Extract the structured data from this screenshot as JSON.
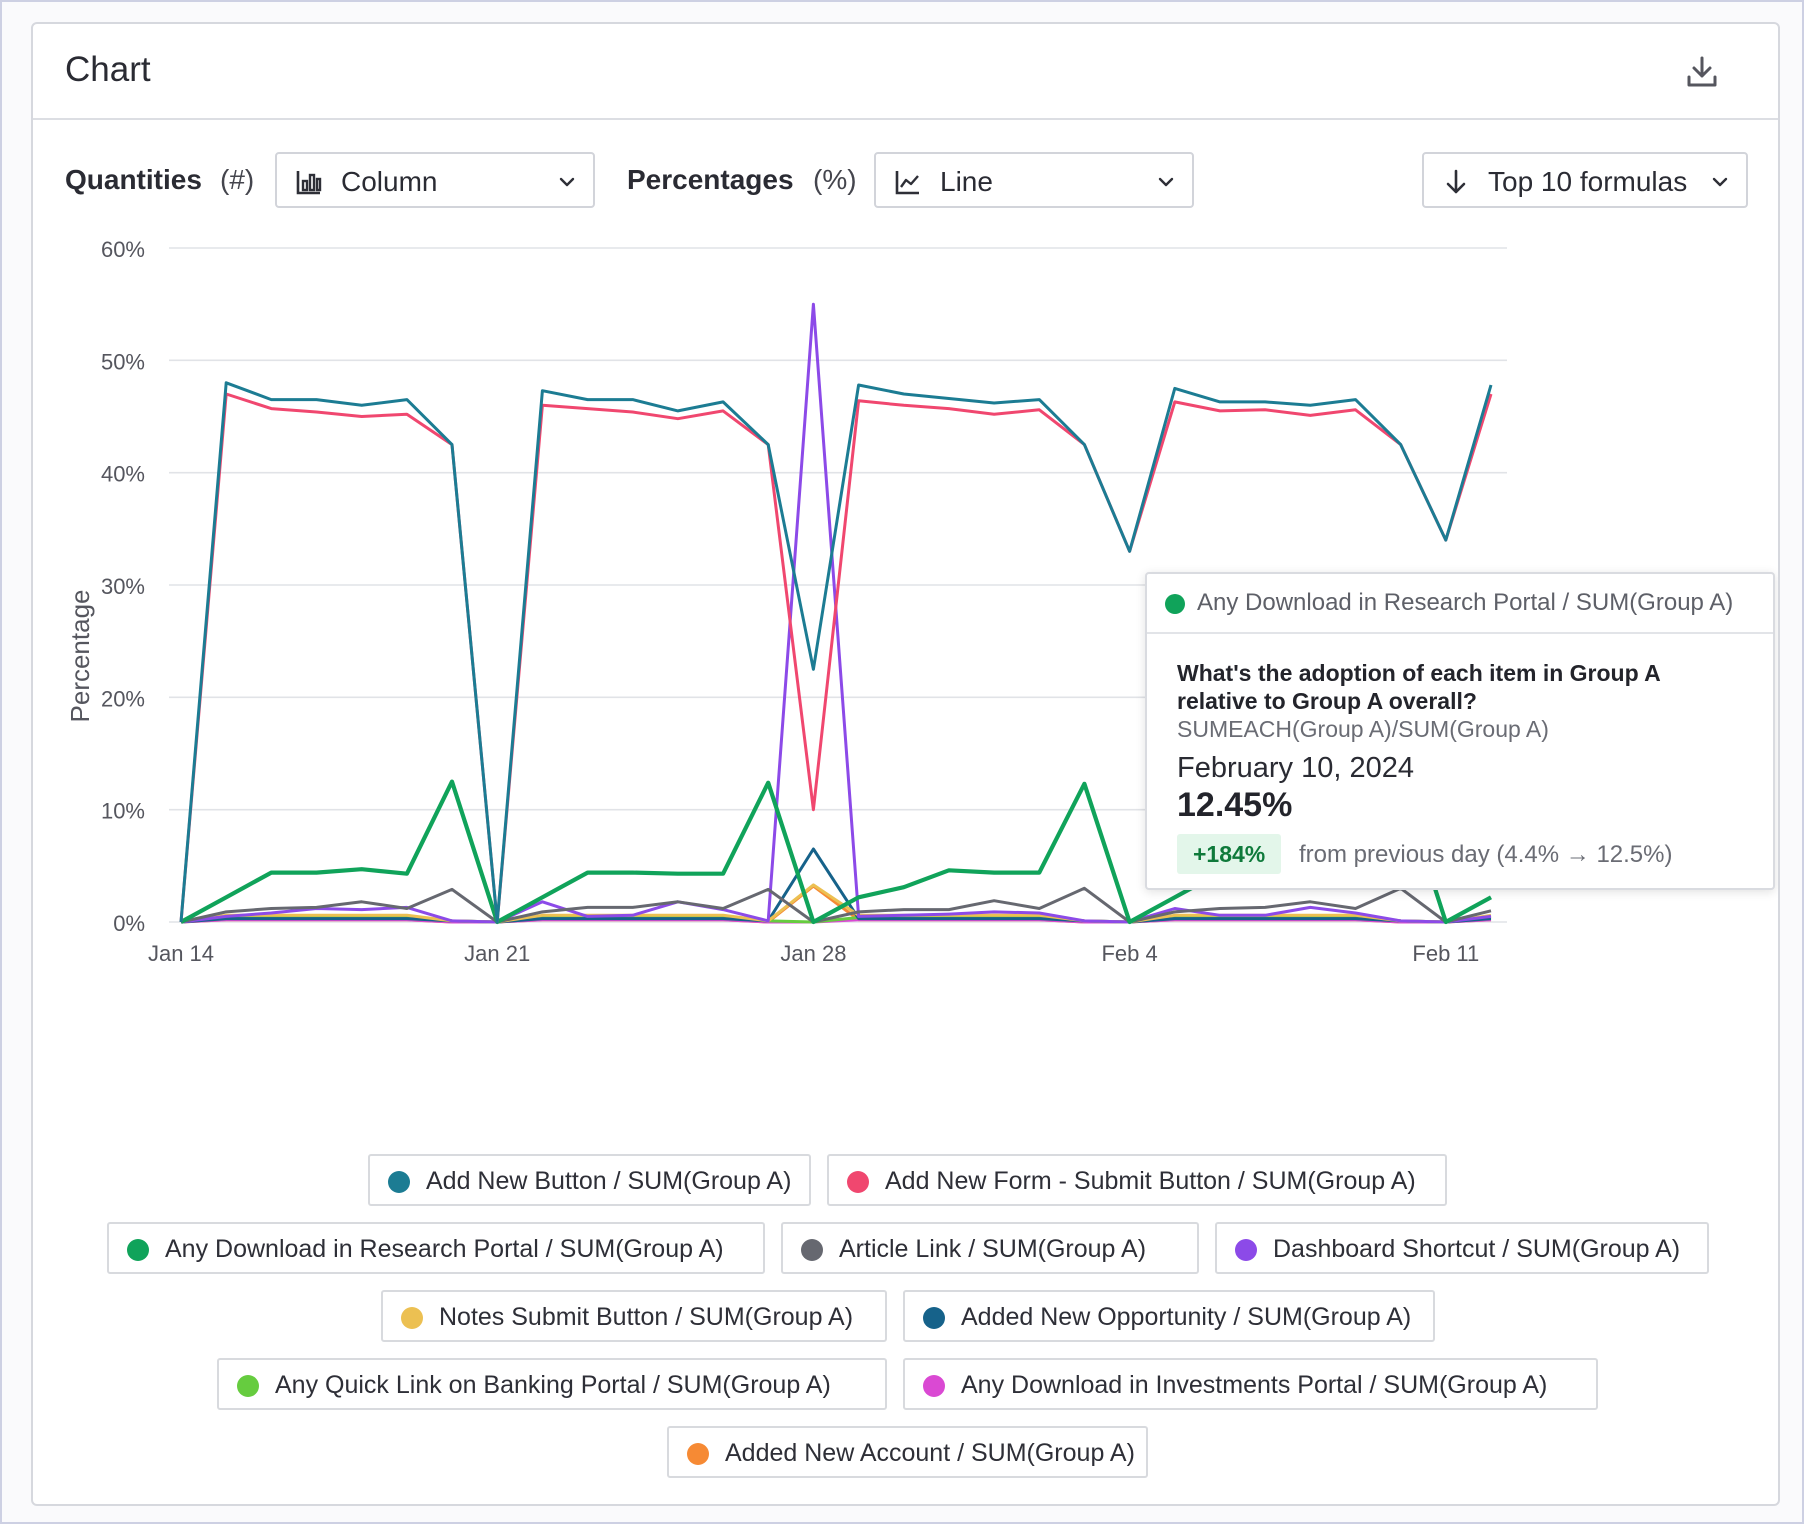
{
  "card": {
    "title": "Chart"
  },
  "controls": {
    "quantities_label": "Quantities",
    "quantities_unit": "(#)",
    "quantities_value": "Column",
    "percentages_label": "Percentages",
    "percentages_unit": "(%)",
    "percentages_value": "Line",
    "sort_value": "Top 10 formulas"
  },
  "chart_data": {
    "type": "line",
    "title": "",
    "xlabel": "",
    "ylabel": "Percentage",
    "ylim": [
      0,
      60
    ],
    "yticks": [
      0,
      10,
      20,
      30,
      40,
      50,
      60
    ],
    "ytick_labels": [
      "0%",
      "10%",
      "20%",
      "30%",
      "40%",
      "50%",
      "60%"
    ],
    "xtick_labels": [
      "Jan 14",
      "Jan 21",
      "Jan 28",
      "Feb 4",
      "Feb 11"
    ],
    "grid": true,
    "x": [
      "Jan 14",
      "Jan 15",
      "Jan 16",
      "Jan 17",
      "Jan 18",
      "Jan 19",
      "Jan 20",
      "Jan 21",
      "Jan 22",
      "Jan 23",
      "Jan 24",
      "Jan 25",
      "Jan 26",
      "Jan 27",
      "Jan 28",
      "Jan 29",
      "Jan 30",
      "Jan 31",
      "Feb 1",
      "Feb 2",
      "Feb 3",
      "Feb 4",
      "Feb 5",
      "Feb 6",
      "Feb 7",
      "Feb 8",
      "Feb 9",
      "Feb 10",
      "Feb 11",
      "Feb 12"
    ],
    "series": [
      {
        "name": "Add New Button / SUM(Group A)",
        "color": "#1c7c93",
        "values": [
          0,
          48,
          46.5,
          46.5,
          46,
          46.5,
          42.5,
          0,
          47.3,
          46.5,
          46.5,
          45.5,
          46.3,
          42.5,
          22.5,
          47.8,
          47,
          46.6,
          46.2,
          46.5,
          42.5,
          33,
          47.5,
          46.3,
          46.3,
          46,
          46.5,
          42.5,
          34,
          47.8
        ]
      },
      {
        "name": "Add New Form - Submit Button / SUM(Group A)",
        "color": "#f0476f",
        "values": [
          0,
          47,
          45.7,
          45.4,
          45,
          45.2,
          42.5,
          0,
          46,
          45.7,
          45.4,
          44.8,
          45.5,
          42.5,
          10,
          46.4,
          46,
          45.7,
          45.2,
          45.6,
          42.5,
          33,
          46.3,
          45.5,
          45.6,
          45.1,
          45.6,
          42.5,
          34,
          47
        ]
      },
      {
        "name": "Any Download in Research Portal / SUM(Group A)",
        "color": "#10a35a",
        "values": [
          0,
          2.2,
          4.4,
          4.4,
          4.7,
          4.3,
          12.5,
          0,
          2.2,
          4.4,
          4.4,
          4.3,
          4.3,
          12.4,
          0,
          2.2,
          3.1,
          4.6,
          4.4,
          4.4,
          12.3,
          0,
          2.2,
          4.4,
          4.6,
          4.4,
          4.4,
          12.45,
          0,
          2.2
        ]
      },
      {
        "name": "Article Link / SUM(Group A)",
        "color": "#666870",
        "values": [
          0,
          0.9,
          1.2,
          1.3,
          1.8,
          1.2,
          2.9,
          0,
          0.9,
          1.3,
          1.3,
          1.8,
          1.2,
          2.9,
          0,
          0.9,
          1.1,
          1.1,
          1.9,
          1.2,
          3,
          0,
          0.9,
          1.2,
          1.3,
          1.8,
          1.2,
          3,
          0,
          1
        ]
      },
      {
        "name": "Dashboard Shortcut / SUM(Group A)",
        "color": "#8c4ae8",
        "values": [
          0,
          0.5,
          0.8,
          1.2,
          1.1,
          1.3,
          0.1,
          0,
          1.8,
          0.5,
          0.6,
          1.8,
          1.1,
          0.1,
          55,
          0.5,
          0.6,
          0.7,
          0.9,
          0.8,
          0.1,
          0,
          1.2,
          0.6,
          0.6,
          1.3,
          0.8,
          0.1,
          0,
          0.5
        ]
      },
      {
        "name": "Notes Submit Button / SUM(Group A)",
        "color": "#ecc052",
        "values": [
          0,
          0.6,
          0.6,
          0.6,
          0.6,
          0.6,
          0.1,
          0,
          0.6,
          0.6,
          0.6,
          0.6,
          0.6,
          0.1,
          3.3,
          0.6,
          0.6,
          0.6,
          0.6,
          0.6,
          0.1,
          0,
          0.6,
          0.6,
          0.6,
          0.6,
          0.6,
          0.1,
          0,
          0.6
        ]
      },
      {
        "name": "Added New Opportunity / SUM(Group A)",
        "color": "#16628a",
        "values": [
          0,
          0.3,
          0.3,
          0.3,
          0.3,
          0.3,
          0.1,
          0,
          0.3,
          0.3,
          0.3,
          0.3,
          0.3,
          0.1,
          6.5,
          0.3,
          0.3,
          0.3,
          0.3,
          0.3,
          0.1,
          0,
          0.3,
          0.3,
          0.3,
          0.3,
          0.3,
          0.1,
          0,
          0.3
        ]
      },
      {
        "name": "Any Quick Link on Banking Portal / SUM(Group A)",
        "color": "#66cc3f",
        "values": [
          0,
          0.4,
          0.5,
          0.5,
          0.5,
          0.5,
          0.1,
          0,
          0.4,
          0.5,
          0.5,
          0.5,
          0.5,
          0.1,
          0,
          0.4,
          0.5,
          0.5,
          0.5,
          0.5,
          0.1,
          0,
          0.4,
          0.5,
          0.5,
          0.5,
          0.5,
          0.1,
          0,
          0.4
        ]
      },
      {
        "name": "Any Download in Investments Portal / SUM(Group A)",
        "color": "#da49d3",
        "values": [
          0,
          0.2,
          0.2,
          0.2,
          0.2,
          0.2,
          0,
          0,
          0.2,
          0.2,
          0.2,
          0.2,
          0.2,
          0,
          0,
          0.2,
          0.2,
          0.2,
          0.2,
          0.2,
          0,
          0,
          0.2,
          0.2,
          0.2,
          0.2,
          0.2,
          0,
          0,
          0.2
        ]
      },
      {
        "name": "Added New Account / SUM(Group A)",
        "color": "#f68a34",
        "values": [
          0,
          0.2,
          0.2,
          0.2,
          0.2,
          0.2,
          0,
          0,
          0.2,
          0.2,
          0.2,
          0.2,
          0.2,
          0,
          3.2,
          0.2,
          0.2,
          0.2,
          0.2,
          0.2,
          0,
          0,
          0.2,
          0.2,
          0.2,
          0.2,
          0.2,
          0,
          0,
          0.2
        ]
      }
    ],
    "legend_position": "bottom"
  },
  "tooltip": {
    "series": "Any Download in Research Portal / SUM(Group A)",
    "color": "#10a35a",
    "question": "What's the adoption of each item in Group A relative to Group A overall?",
    "formula": "SUMEACH(Group A)/SUM(Group A)",
    "date": "February 10, 2024",
    "value": "12.45%",
    "change": "+184%",
    "change_text": "from previous day (4.4% → 12.5%)"
  },
  "icons": {
    "download": "download-icon",
    "column": "bar-chart-icon",
    "line": "line-chart-icon",
    "sort": "arrow-down-icon",
    "chevron": "chevron-down-icon"
  }
}
